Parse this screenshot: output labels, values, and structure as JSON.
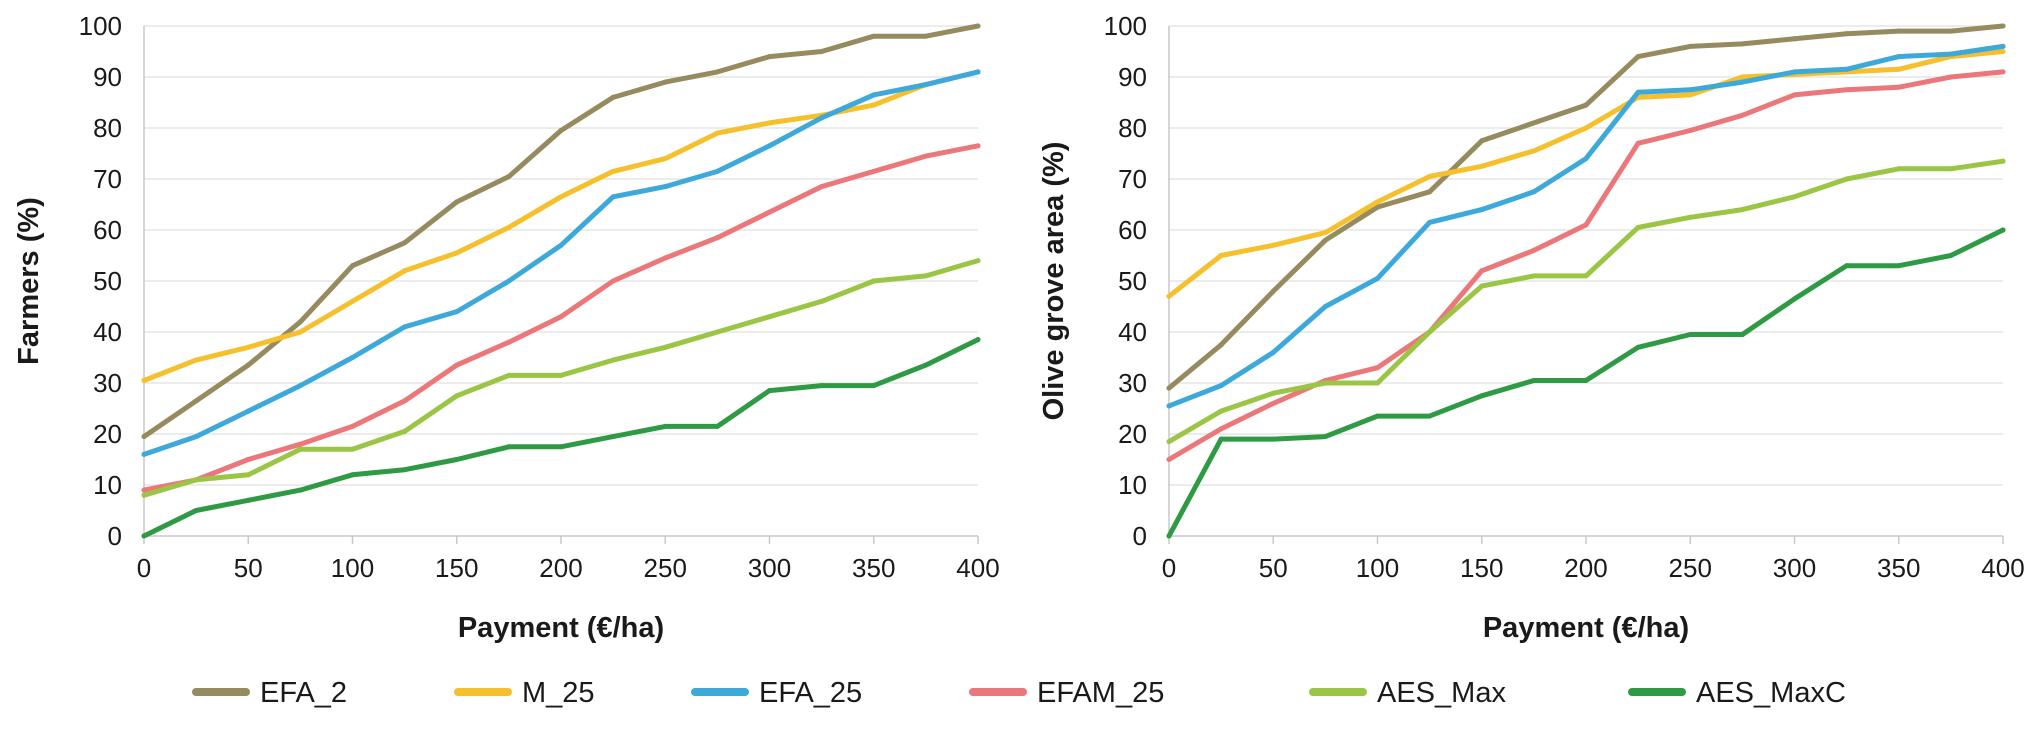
{
  "chart_data": [
    {
      "type": "line",
      "title": "",
      "xlabel": "Payment (€/ha)",
      "ylabel": "Farmers (%)",
      "xlim": [
        0,
        400
      ],
      "ylim": [
        0,
        100
      ],
      "xticks": [
        0,
        50,
        100,
        150,
        200,
        250,
        300,
        350,
        400
      ],
      "yticks": [
        0,
        10,
        20,
        30,
        40,
        50,
        60,
        70,
        80,
        90,
        100
      ],
      "grid": "horizontal",
      "x": [
        0,
        25,
        50,
        75,
        100,
        125,
        150,
        175,
        200,
        225,
        250,
        275,
        300,
        325,
        350,
        375,
        400
      ],
      "series": [
        {
          "name": "EFA_2",
          "color": "#958b5f",
          "values": [
            19.5,
            26.5,
            33.5,
            42,
            53,
            57.5,
            65.5,
            70.5,
            79.5,
            86,
            89,
            91,
            94,
            95,
            98,
            98,
            100
          ]
        },
        {
          "name": "M_25",
          "color": "#f5c02c",
          "values": [
            30.5,
            34.5,
            37,
            40,
            46,
            52,
            55.5,
            60.5,
            66.5,
            71.5,
            74,
            79,
            81,
            82.5,
            84.5,
            88.5,
            91
          ]
        },
        {
          "name": "EFA_25",
          "color": "#3da9db",
          "values": [
            16,
            19.5,
            24.5,
            29.5,
            35,
            41,
            44,
            50,
            57,
            66.5,
            68.5,
            71.5,
            76.5,
            82,
            86.5,
            88.5,
            91
          ]
        },
        {
          "name": "EFAM_25",
          "color": "#ec777a",
          "values": [
            9,
            11,
            15,
            18,
            21.5,
            26.5,
            33.5,
            38,
            43,
            50,
            54.5,
            58.5,
            63.5,
            68.5,
            71.5,
            74.5,
            76.5
          ]
        },
        {
          "name": "AES_Max",
          "color": "#9ac545",
          "values": [
            8,
            11,
            12,
            17,
            17,
            20.5,
            27.5,
            31.5,
            31.5,
            34.5,
            37,
            40,
            43,
            46,
            50,
            51,
            54
          ]
        },
        {
          "name": "AES_MaxC",
          "color": "#2e9b44",
          "values": [
            0,
            5,
            7,
            9,
            12,
            13,
            15,
            17.5,
            17.5,
            19.5,
            21.5,
            21.5,
            28.5,
            29.5,
            29.5,
            33.5,
            38.5
          ]
        }
      ]
    },
    {
      "type": "line",
      "title": "",
      "xlabel": "Payment (€/ha)",
      "ylabel": "Olive grove area (%)",
      "xlim": [
        0,
        400
      ],
      "ylim": [
        0,
        100
      ],
      "xticks": [
        0,
        50,
        100,
        150,
        200,
        250,
        300,
        350,
        400
      ],
      "yticks": [
        0,
        10,
        20,
        30,
        40,
        50,
        60,
        70,
        80,
        90,
        100
      ],
      "grid": "horizontal",
      "x": [
        0,
        25,
        50,
        75,
        100,
        125,
        150,
        175,
        200,
        225,
        250,
        275,
        300,
        325,
        350,
        375,
        400
      ],
      "series": [
        {
          "name": "EFA_2",
          "color": "#958b5f",
          "values": [
            29,
            37.5,
            48,
            58,
            64.5,
            67.5,
            77.5,
            81,
            84.5,
            94,
            96,
            96.5,
            97.5,
            98.5,
            99,
            99,
            100
          ]
        },
        {
          "name": "M_25",
          "color": "#f5c02c",
          "values": [
            47,
            55,
            57,
            59.5,
            65.5,
            70.5,
            72.5,
            75.5,
            80,
            86,
            86.5,
            90,
            90.5,
            91,
            91.5,
            94,
            95
          ]
        },
        {
          "name": "EFA_25",
          "color": "#3da9db",
          "values": [
            25.5,
            29.5,
            36,
            45,
            50.5,
            61.5,
            64,
            67.5,
            74,
            87,
            87.5,
            89,
            91,
            91.5,
            94,
            94.5,
            96
          ]
        },
        {
          "name": "EFAM_25",
          "color": "#ec777a",
          "values": [
            15,
            21,
            26,
            30.5,
            33,
            40,
            52,
            56,
            61,
            77,
            79.5,
            82.5,
            86.5,
            87.5,
            88,
            90,
            91
          ]
        },
        {
          "name": "AES_Max",
          "color": "#9ac545",
          "values": [
            18.5,
            24.5,
            28,
            30,
            30,
            40,
            49,
            51,
            51,
            60.5,
            62.5,
            64,
            66.5,
            70,
            72,
            72,
            73.5
          ]
        },
        {
          "name": "AES_MaxC",
          "color": "#2e9b44",
          "values": [
            0,
            19,
            19,
            19.5,
            23.5,
            23.5,
            27.5,
            30.5,
            30.5,
            37,
            39.5,
            39.5,
            46.5,
            53,
            53,
            55,
            60
          ]
        }
      ]
    }
  ],
  "legend": {
    "placement": "bottom",
    "items": [
      {
        "label": "EFA_2",
        "color": "#958b5f"
      },
      {
        "label": "M_25",
        "color": "#f5c02c"
      },
      {
        "label": "EFA_25",
        "color": "#3da9db"
      },
      {
        "label": "EFAM_25",
        "color": "#ec777a"
      },
      {
        "label": "AES_Max",
        "color": "#9ac545"
      },
      {
        "label": "AES_MaxC",
        "color": "#2e9b44"
      }
    ]
  },
  "colors": {
    "axis": "#c8c8c8",
    "grid": "#e6e6e6",
    "text": "#1a1a1a"
  }
}
